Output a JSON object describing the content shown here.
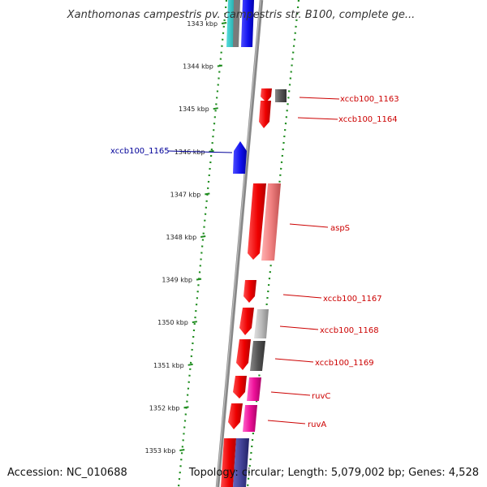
{
  "header": {
    "title": "Xanthomonas campestris pv. campestris str. B100, complete ge..."
  },
  "footer": {
    "accession": "Accession: NC_010688",
    "summary": "Topology: circular; Length: 5,079,002 bp; Genes: 4,528"
  },
  "colors": {
    "forward_strand": "#ff0000",
    "reverse_strand": "#0000ff",
    "backbone": "#888888",
    "dotted_ring": "#1e8c1e",
    "forward_label": "#cc0000",
    "reverse_label": "#000099"
  },
  "ticks": [
    {
      "label": "1343 kbp",
      "kbp": 1343
    },
    {
      "label": "1344 kbp",
      "kbp": 1344
    },
    {
      "label": "1345 kbp",
      "kbp": 1345
    },
    {
      "label": "1346 kbp",
      "kbp": 1346
    },
    {
      "label": "1347 kbp",
      "kbp": 1347
    },
    {
      "label": "1348 kbp",
      "kbp": 1348
    },
    {
      "label": "1349 kbp",
      "kbp": 1349
    },
    {
      "label": "1350 kbp",
      "kbp": 1350
    },
    {
      "label": "1351 kbp",
      "kbp": 1351
    },
    {
      "label": "1352 kbp",
      "kbp": 1352
    },
    {
      "label": "1353 kbp",
      "kbp": 1353
    }
  ],
  "gene_labels": [
    {
      "name": "xccb100_1163",
      "strand": "forward"
    },
    {
      "name": "xccb100_1164",
      "strand": "forward"
    },
    {
      "name": "xccb100_1165",
      "strand": "reverse"
    },
    {
      "name": "aspS",
      "strand": "forward"
    },
    {
      "name": "xccb100_1167",
      "strand": "forward"
    },
    {
      "name": "xccb100_1168",
      "strand": "forward"
    },
    {
      "name": "xccb100_1169",
      "strand": "forward"
    },
    {
      "name": "ruvC",
      "strand": "forward"
    },
    {
      "name": "ruvA",
      "strand": "forward"
    }
  ],
  "chart_data": {
    "type": "circular-genome-map",
    "title": "Xanthomonas campestris pv. campestris str. B100, complete ge...",
    "visible_range_kbp": [
      1343,
      1353
    ],
    "features": [
      {
        "name": "xccb100_1163",
        "strand": "+",
        "start_kbp": 1344.55,
        "end_kbp": 1344.75,
        "color": "#ee0000",
        "cog_color": "#555555"
      },
      {
        "name": "xccb100_1164",
        "strand": "+",
        "start_kbp": 1344.78,
        "end_kbp": 1345.4,
        "color": "#ee0000"
      },
      {
        "name": "xccb100_1165",
        "strand": "-",
        "start_kbp": 1345.75,
        "end_kbp": 1346.5,
        "color": "#1111ee"
      },
      {
        "name": "aspS",
        "strand": "+",
        "start_kbp": 1346.7,
        "end_kbp": 1348.5,
        "color": "#ee0000",
        "cog_color": "#f08080"
      },
      {
        "name": "xccb100_1167",
        "strand": "+",
        "start_kbp": 1349.0,
        "end_kbp": 1349.5,
        "color": "#ee0000"
      },
      {
        "name": "xccb100_1168",
        "strand": "+",
        "start_kbp": 1349.65,
        "end_kbp": 1350.3,
        "color": "#ee0000",
        "cog_color": "#bbbbbb"
      },
      {
        "name": "xccb100_1169",
        "strand": "+",
        "start_kbp": 1350.4,
        "end_kbp": 1351.1,
        "color": "#ee0000",
        "cog_color": "#555555"
      },
      {
        "name": "ruvC",
        "strand": "+",
        "start_kbp": 1351.25,
        "end_kbp": 1351.8,
        "color": "#ee0000",
        "cog_color": "#ee1199"
      },
      {
        "name": "ruvA",
        "strand": "+",
        "start_kbp": 1351.9,
        "end_kbp": 1352.5,
        "color": "#ee0000",
        "cog_color": "#ee1199"
      }
    ]
  }
}
